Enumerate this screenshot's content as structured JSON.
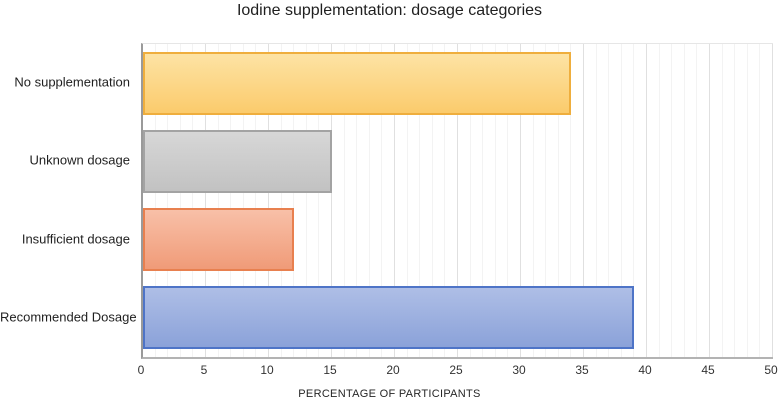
{
  "chart_data": {
    "type": "bar",
    "orientation": "horizontal",
    "title": "Iodine supplementation: dosage categories",
    "categories": [
      "No supplementation",
      "Unknown dosage",
      "Insufficient dosage",
      "Recommended Dosage"
    ],
    "values": [
      34,
      15,
      12,
      39
    ],
    "xlabel": "PERCENTAGE OF PARTICIPANTS",
    "ylabel": "",
    "xlim": [
      0,
      50
    ],
    "x_ticks": [
      0,
      5,
      10,
      15,
      20,
      25,
      30,
      35,
      40,
      45,
      50
    ],
    "minor_gridline_step": 1,
    "major_gridline_step": 5,
    "grid": true,
    "legend": false,
    "bar_styles": [
      {
        "name": "yellow",
        "fill_top": "#FDE3A4",
        "fill_bottom": "#FBCB6C",
        "border": "#EFAE3D"
      },
      {
        "name": "gray",
        "fill_top": "#D7D7D7",
        "fill_bottom": "#C2C2C2",
        "border": "#A3A3A3"
      },
      {
        "name": "salmon",
        "fill_top": "#F8C0A8",
        "fill_bottom": "#F09B78",
        "border": "#E8804F"
      },
      {
        "name": "blue",
        "fill_top": "#AEBEE6",
        "fill_bottom": "#8BA2D9",
        "border": "#4E74C7"
      }
    ]
  }
}
